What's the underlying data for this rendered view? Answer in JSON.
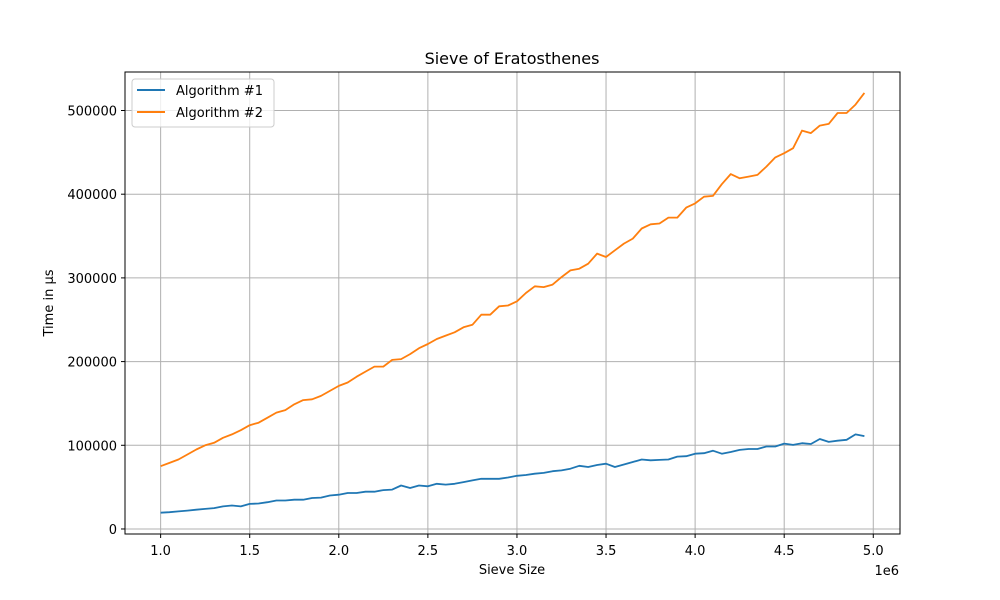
{
  "chart_data": {
    "type": "line",
    "title": "Sieve of Eratosthenes",
    "xlabel": "Sieve Size",
    "ylabel": "Time in µs",
    "x_offset_label": "1e6",
    "xlim": [
      800000,
      5150000
    ],
    "ylim": [
      -6000,
      546000
    ],
    "x_ticks": [
      1000000,
      1500000,
      2000000,
      2500000,
      3000000,
      3500000,
      4000000,
      4500000,
      5000000
    ],
    "x_tick_labels": [
      "1.0",
      "1.5",
      "2.0",
      "2.5",
      "3.0",
      "3.5",
      "4.0",
      "4.5",
      "5.0"
    ],
    "y_ticks": [
      0,
      100000,
      200000,
      300000,
      400000,
      500000
    ],
    "y_tick_labels": [
      "0",
      "100000",
      "200000",
      "300000",
      "400000",
      "500000"
    ],
    "grid": true,
    "legend_position": "top-left",
    "x": [
      1000000,
      1050000,
      1100000,
      1150000,
      1200000,
      1250000,
      1300000,
      1350000,
      1400000,
      1450000,
      1500000,
      1550000,
      1600000,
      1650000,
      1700000,
      1750000,
      1800000,
      1850000,
      1900000,
      1950000,
      2000000,
      2050000,
      2100000,
      2150000,
      2200000,
      2250000,
      2300000,
      2350000,
      2400000,
      2450000,
      2500000,
      2550000,
      2600000,
      2650000,
      2700000,
      2750000,
      2800000,
      2850000,
      2900000,
      2950000,
      3000000,
      3050000,
      3100000,
      3150000,
      3200000,
      3250000,
      3300000,
      3350000,
      3400000,
      3450000,
      3500000,
      3550000,
      3600000,
      3650000,
      3700000,
      3750000,
      3800000,
      3850000,
      3900000,
      3950000,
      4000000,
      4050000,
      4100000,
      4150000,
      4200000,
      4250000,
      4300000,
      4350000,
      4400000,
      4450000,
      4500000,
      4550000,
      4600000,
      4650000,
      4700000,
      4750000,
      4800000,
      4850000,
      4900000,
      4950000
    ],
    "series": [
      {
        "name": "Algorithm #1",
        "color": "#1f77b4",
        "values": [
          19500,
          20000,
          21000,
          22000,
          23000,
          24000,
          25000,
          27000,
          28000,
          27000,
          30000,
          30500,
          32000,
          34000,
          34000,
          35000,
          35000,
          37000,
          37500,
          40000,
          41000,
          43000,
          43000,
          44500,
          44500,
          46500,
          47000,
          52000,
          49000,
          52000,
          51000,
          54000,
          53000,
          54000,
          56000,
          58000,
          60000,
          60000,
          60000,
          61500,
          63500,
          64500,
          66000,
          67000,
          69000,
          70000,
          72000,
          75500,
          74000,
          76500,
          78000,
          74000,
          77000,
          80000,
          83000,
          82000,
          82500,
          83000,
          86500,
          87000,
          90000,
          90500,
          93500,
          90000,
          92000,
          94500,
          95500,
          95500,
          98500,
          98500,
          102000,
          100500,
          102500,
          101500,
          107500,
          104000,
          105500,
          106500,
          113000,
          111000
        ]
      },
      {
        "name": "Algorithm #2",
        "color": "#ff7f0e",
        "values": [
          75000,
          79000,
          83000,
          89000,
          95000,
          100000,
          103000,
          109000,
          113000,
          118000,
          124000,
          127000,
          133000,
          139000,
          142000,
          149000,
          154000,
          155000,
          159000,
          165000,
          171000,
          175000,
          182000,
          188000,
          194000,
          194000,
          202000,
          203000,
          209000,
          216000,
          221000,
          227000,
          231000,
          235000,
          241000,
          244000,
          256000,
          256000,
          266000,
          267000,
          272000,
          282000,
          290000,
          289000,
          292000,
          301000,
          309000,
          311000,
          317000,
          329000,
          325000,
          333000,
          341000,
          347000,
          359000,
          364000,
          365000,
          372000,
          372000,
          384000,
          389000,
          397000,
          398000,
          412000,
          424000,
          419000,
          421000,
          423000,
          433000,
          444000,
          449000,
          455000,
          476000,
          473000,
          482000,
          484000,
          497000,
          497000,
          507000,
          521000
        ]
      }
    ]
  }
}
